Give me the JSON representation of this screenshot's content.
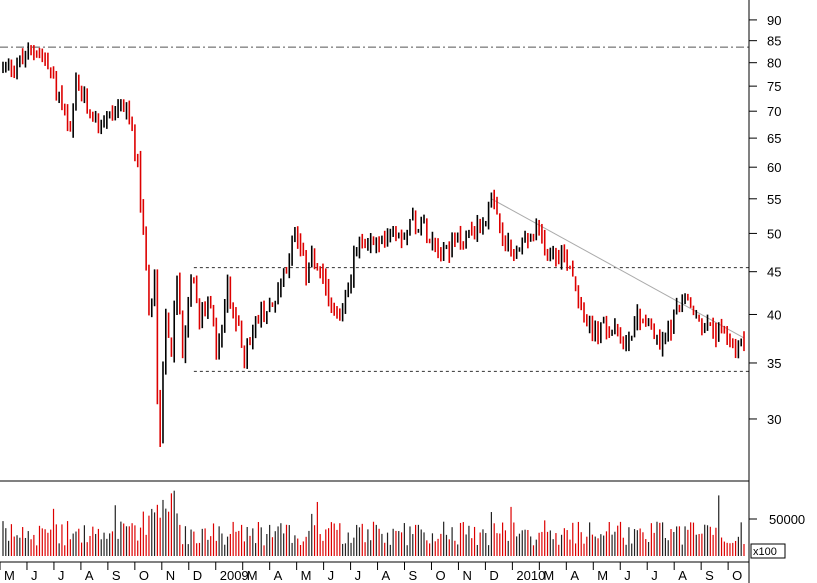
{
  "chart_data": {
    "type": "candlestick",
    "period": {
      "start": "2008-05",
      "end": "2010-10"
    },
    "price_axis": {
      "scale": "log",
      "range": [
        25.5,
        93
      ],
      "ticks": [
        30,
        35,
        40,
        45,
        50,
        55,
        60,
        65,
        70,
        75,
        80,
        85,
        90
      ]
    },
    "volume_axis": {
      "tick": "50000",
      "multiplier_label": "x100"
    },
    "x_ticks": [
      "M",
      "J",
      "J",
      "A",
      "S",
      "O",
      "N",
      "D",
      "2009",
      "M",
      "A",
      "M",
      "J",
      "J",
      "A",
      "S",
      "O",
      "N",
      "D",
      "2010",
      "M",
      "A",
      "M",
      "J",
      "J",
      "A",
      "S",
      "O"
    ],
    "up_color": "#000000",
    "down_color": "#dd0000",
    "volume_color": "#dd0000",
    "price_path": [
      [
        0,
        79
      ],
      [
        3,
        80
      ],
      [
        6,
        83.5
      ],
      [
        8,
        79
      ],
      [
        10,
        73
      ],
      [
        12,
        65
      ],
      [
        13,
        75
      ],
      [
        15,
        71
      ],
      [
        17,
        68
      ],
      [
        19,
        69
      ],
      [
        21,
        72
      ],
      [
        23,
        66
      ],
      [
        24,
        60
      ],
      [
        25,
        50
      ],
      [
        26,
        40
      ],
      [
        27,
        45
      ],
      [
        27.5,
        32
      ],
      [
        28,
        29
      ],
      [
        29,
        40
      ],
      [
        30,
        36
      ],
      [
        31,
        44
      ],
      [
        32,
        35
      ],
      [
        33,
        42
      ],
      [
        34,
        45
      ],
      [
        35,
        40
      ],
      [
        37,
        42
      ],
      [
        38,
        36
      ],
      [
        40,
        43
      ],
      [
        42,
        38
      ],
      [
        43,
        36
      ],
      [
        45,
        39
      ],
      [
        46,
        40
      ],
      [
        48,
        41
      ],
      [
        50,
        45
      ],
      [
        52,
        50
      ],
      [
        54,
        45
      ],
      [
        55,
        48
      ],
      [
        56,
        45
      ],
      [
        58,
        42
      ],
      [
        60,
        40
      ],
      [
        61,
        42
      ],
      [
        63,
        48
      ],
      [
        65,
        49
      ],
      [
        67,
        48
      ],
      [
        69,
        51
      ],
      [
        71,
        50
      ],
      [
        73,
        52
      ],
      [
        75,
        51
      ],
      [
        77,
        49
      ],
      [
        79,
        48
      ],
      [
        81,
        49
      ],
      [
        83,
        50
      ],
      [
        85,
        51
      ],
      [
        87,
        54
      ],
      [
        88,
        52
      ],
      [
        89,
        49
      ],
      [
        91,
        47
      ],
      [
        93,
        49
      ],
      [
        95,
        50
      ],
      [
        97,
        48
      ],
      [
        99,
        47.5
      ],
      [
        101,
        46
      ],
      [
        103,
        41
      ],
      [
        105,
        38
      ],
      [
        107,
        38.5
      ],
      [
        109,
        38
      ],
      [
        111,
        37
      ],
      [
        113,
        40
      ],
      [
        115,
        39
      ],
      [
        117,
        36.5
      ],
      [
        119,
        39
      ],
      [
        121,
        42
      ],
      [
        123,
        40
      ],
      [
        125,
        38.5
      ],
      [
        127,
        38
      ],
      [
        129,
        37.5
      ],
      [
        131,
        36.5
      ],
      [
        132,
        37
      ]
    ],
    "annotations": {
      "resistance_top": 83.5,
      "resistance": 45.5,
      "support": 34.2,
      "trendline": {
        "from": [
          87,
          55
        ],
        "to": [
          132,
          37.5
        ]
      }
    }
  }
}
